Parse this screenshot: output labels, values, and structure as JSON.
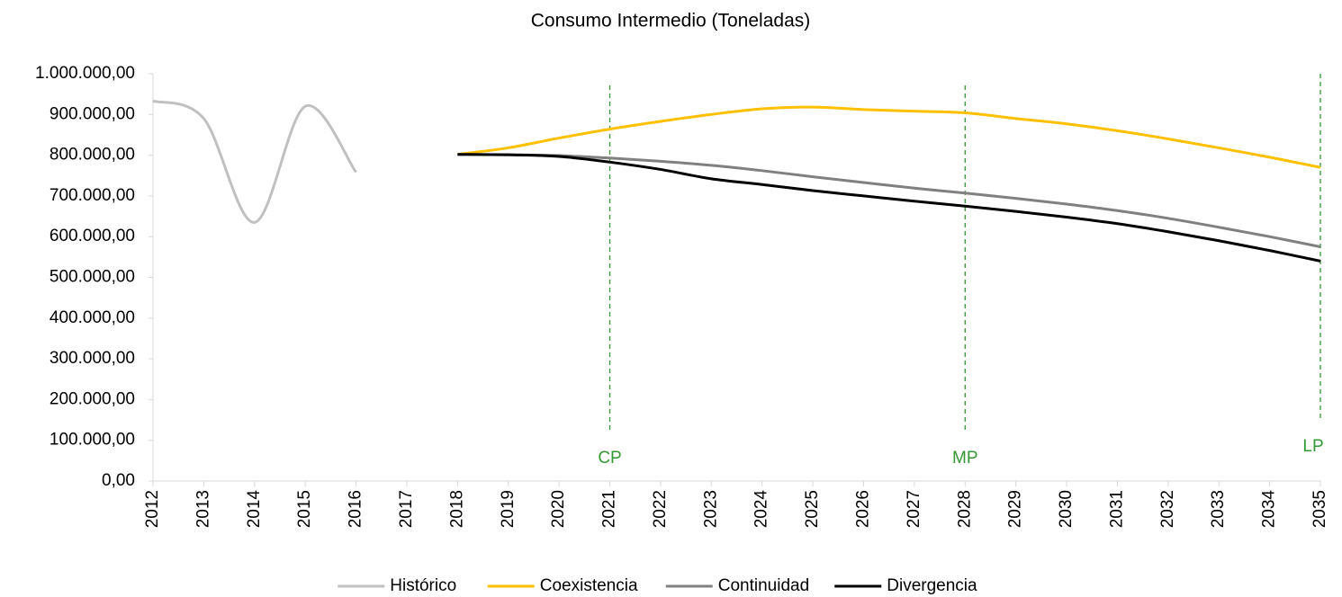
{
  "chart_data": {
    "type": "line",
    "title": "Consumo Intermedio (Toneladas)",
    "categories": [
      "2012",
      "2013",
      "2014",
      "2015",
      "2016",
      "2017",
      "2018",
      "2019",
      "2020",
      "2021",
      "2022",
      "2023",
      "2024",
      "2025",
      "2026",
      "2027",
      "2028",
      "2029",
      "2030",
      "2031",
      "2032",
      "2033",
      "2034",
      "2035"
    ],
    "series": [
      {
        "name": "Histórico",
        "color": "#c0c0c0",
        "values": [
          933000,
          890000,
          635000,
          920000,
          758000,
          null,
          null,
          null,
          null,
          null,
          null,
          null,
          null,
          null,
          null,
          null,
          null,
          null,
          null,
          null,
          null,
          null,
          null,
          null
        ]
      },
      {
        "name": "Coexistencia",
        "color": "#ffc000",
        "values": [
          null,
          null,
          null,
          null,
          null,
          null,
          802000,
          818000,
          842000,
          864000,
          883000,
          900000,
          914000,
          918000,
          912000,
          908000,
          904000,
          890000,
          877000,
          860000,
          840000,
          818000,
          795000,
          770000
        ]
      },
      {
        "name": "Continuidad",
        "color": "#808080",
        "values": [
          null,
          null,
          null,
          null,
          null,
          null,
          802000,
          801000,
          799000,
          793000,
          785000,
          775000,
          762000,
          747000,
          733000,
          719000,
          707000,
          694000,
          680000,
          664000,
          645000,
          623000,
          600000,
          575000
        ]
      },
      {
        "name": "Divergencia",
        "color": "#000000",
        "values": [
          null,
          null,
          null,
          null,
          null,
          null,
          802000,
          801000,
          797000,
          783000,
          765000,
          742000,
          728000,
          713000,
          700000,
          687000,
          675000,
          662000,
          648000,
          632000,
          612000,
          590000,
          566000,
          540000
        ]
      }
    ],
    "ylim": [
      0,
      1000000
    ],
    "yticks": [
      {
        "value": 0,
        "label": "0,00"
      },
      {
        "value": 100000,
        "label": "100.000,00"
      },
      {
        "value": 200000,
        "label": "200.000,00"
      },
      {
        "value": 300000,
        "label": "300.000,00"
      },
      {
        "value": 400000,
        "label": "400.000,00"
      },
      {
        "value": 500000,
        "label": "500.000,00"
      },
      {
        "value": 600000,
        "label": "600.000,00"
      },
      {
        "value": 700000,
        "label": "700.000,00"
      },
      {
        "value": 800000,
        "label": "800.000,00"
      },
      {
        "value": 900000,
        "label": "900.000,00"
      },
      {
        "value": 1000000,
        "label": "1.000.000,00"
      }
    ],
    "markers": [
      {
        "label": "CP",
        "x": "2021"
      },
      {
        "label": "MP",
        "x": "2028"
      },
      {
        "label": "LP",
        "x": "2035"
      }
    ],
    "marker_color": "#339933",
    "legend": "bottom"
  }
}
